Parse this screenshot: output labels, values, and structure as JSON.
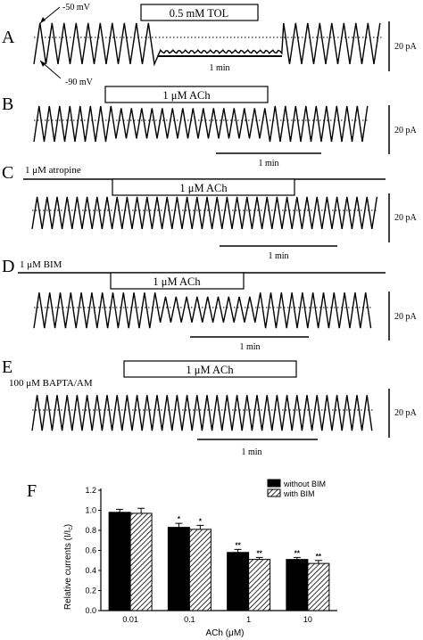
{
  "panels": [
    {
      "id": "A",
      "letter": "A",
      "drug_label": "0.5 mM TOL",
      "scale_current": "20 pA",
      "scale_time": "1 min",
      "annotations": [
        {
          "text": "-50 mV"
        },
        {
          "text": "-90 mV"
        }
      ]
    },
    {
      "id": "B",
      "letter": "B",
      "drug_label": "1 μM ACh",
      "scale_current": "20 pA",
      "scale_time": "1 min"
    },
    {
      "id": "C",
      "letter": "C",
      "pre_label": "1 μM atropine",
      "drug_label": "1 μM ACh",
      "scale_current": "20 pA",
      "scale_time": "1 min"
    },
    {
      "id": "D",
      "letter": "D",
      "pre_label": "1 μM BIM",
      "drug_label": "1 μM ACh",
      "scale_current": "20 pA",
      "scale_time": "1 min"
    },
    {
      "id": "E",
      "letter": "E",
      "pre_label": "100 μM BAPTA/AM",
      "drug_label": "1 μM ACh",
      "scale_current": "20 pA",
      "scale_time": "1 min"
    }
  ],
  "chart_data": {
    "letter": "F",
    "type": "bar",
    "categories": [
      "0.01",
      "0.1",
      "1",
      "10"
    ],
    "xlabel": "ACh (μM)",
    "ylabel": "Relative currents (I/I",
    "ylabel_sub": "c",
    "ylabel_close": ")",
    "ylim": [
      0,
      1.2
    ],
    "yticks": [
      "0.0",
      "0.2",
      "0.4",
      "0.6",
      "0.8",
      "1.0",
      "1.2"
    ],
    "series": [
      {
        "name": "without BIM",
        "values": [
          0.98,
          0.83,
          0.58,
          0.51
        ],
        "errors": [
          0.03,
          0.04,
          0.03,
          0.02
        ],
        "markers": [
          "",
          "*",
          "**",
          "**"
        ],
        "color": "#000000",
        "pattern": "solid"
      },
      {
        "name": "with BIM",
        "values": [
          0.97,
          0.81,
          0.51,
          0.47
        ],
        "errors": [
          0.05,
          0.04,
          0.02,
          0.03
        ],
        "markers": [
          "",
          "*",
          "**",
          "**"
        ],
        "color": "#000000",
        "pattern": "hatched"
      }
    ],
    "legend_position": "top-right"
  }
}
